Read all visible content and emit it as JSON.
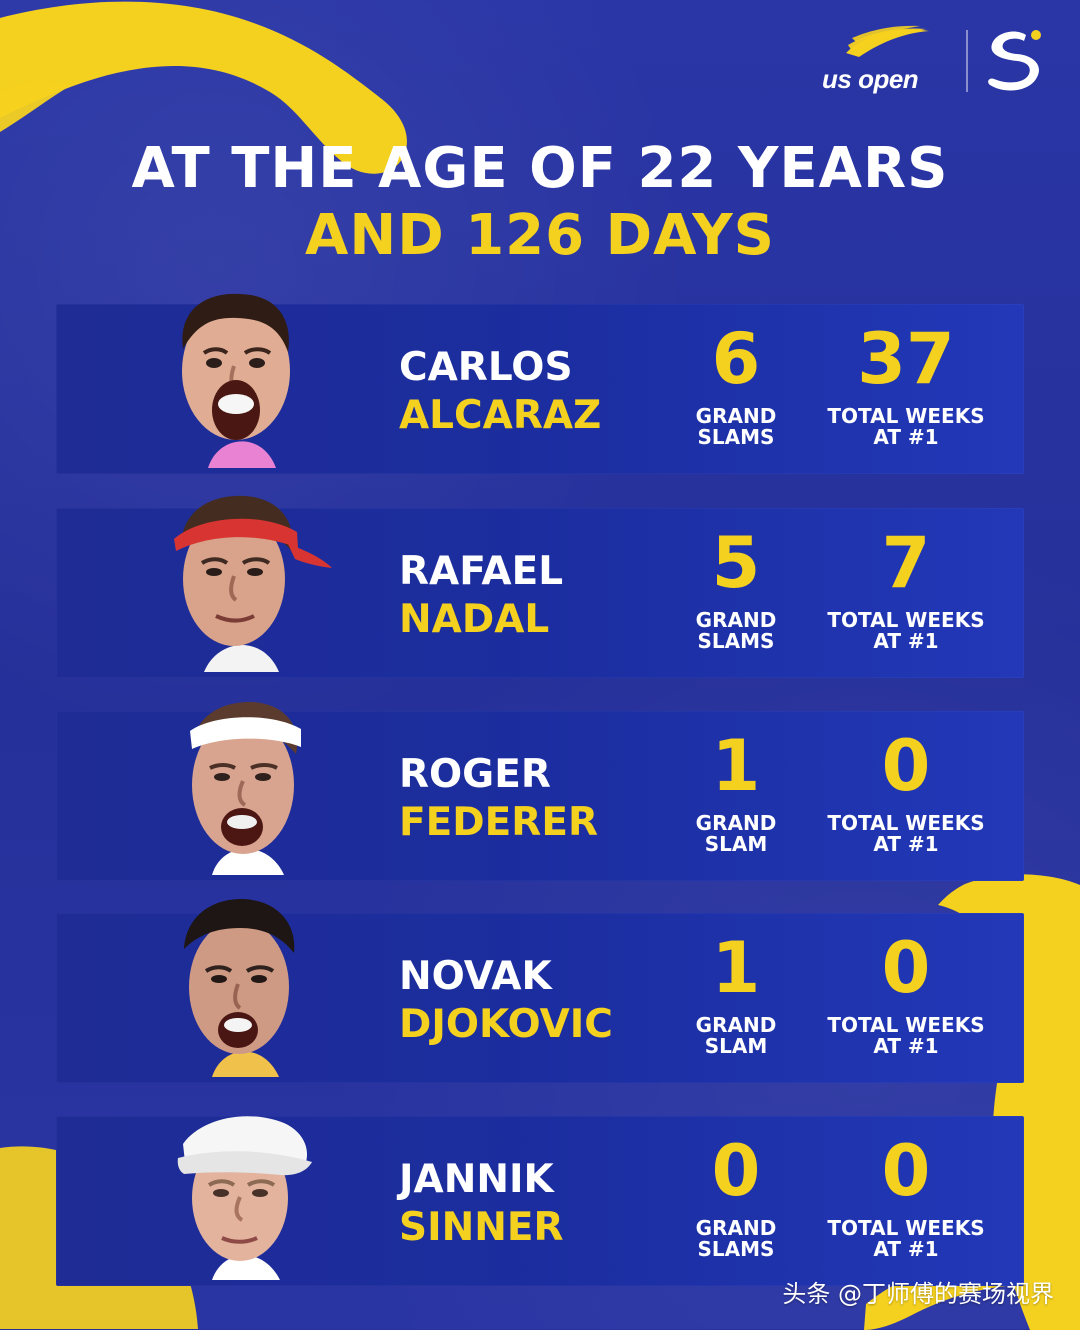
{
  "brand": {
    "name": "us open",
    "colors": {
      "background": "#27329a",
      "panel": "#1f2c95",
      "accent": "#f5d11f",
      "white": "#ffffff"
    }
  },
  "header": {
    "title_line_1": "AT THE AGE OF 22 YEARS",
    "title_line_2": "AND 126 DAYS"
  },
  "players": [
    {
      "first_name": "CARLOS",
      "last_name": "ALCARAZ",
      "grand_slams": "6",
      "grand_slams_label": "GRAND\nSLAMS",
      "weeks_no1": "37",
      "weeks_label": "TOTAL WEEKS\nAT #1",
      "skin": "#e0ad94",
      "hair": "#2f1c14",
      "shirt": "#e982d2",
      "accessory": "none"
    },
    {
      "first_name": "RAFAEL",
      "last_name": "NADAL",
      "grand_slams": "5",
      "grand_slams_label": "GRAND\nSLAMS",
      "weeks_no1": "7",
      "weeks_label": "TOTAL WEEKS\nAT #1",
      "skin": "#d9a28a",
      "hair": "#452c20",
      "shirt": "#f3f3f3",
      "accessory": "red-bandana"
    },
    {
      "first_name": "ROGER",
      "last_name": "FEDERER",
      "grand_slams": "1",
      "grand_slams_label": "GRAND\nSLAM",
      "weeks_no1": "0",
      "weeks_label": "TOTAL WEEKS\nAT #1",
      "skin": "#d9a48f",
      "hair": "#5b3b2d",
      "shirt": "#ffffff",
      "accessory": "white-headband"
    },
    {
      "first_name": "NOVAK",
      "last_name": "DJOKOVIC",
      "grand_slams": "1",
      "grand_slams_label": "GRAND\nSLAM",
      "weeks_no1": "0",
      "weeks_label": "TOTAL WEEKS\nAT #1",
      "skin": "#cf9a84",
      "hair": "#1d1614",
      "shirt": "#f1c24b",
      "accessory": "none"
    },
    {
      "first_name": "JANNIK",
      "last_name": "SINNER",
      "grand_slams": "0",
      "grand_slams_label": "GRAND\nSLAMS",
      "weeks_no1": "0",
      "weeks_label": "TOTAL WEEKS\nAT #1",
      "skin": "#e4b39d",
      "hair": "#d8d8d8",
      "shirt": "#ffffff",
      "accessory": "white-cap"
    }
  ],
  "watermark": "头条 @丁师傅的赛场视界"
}
